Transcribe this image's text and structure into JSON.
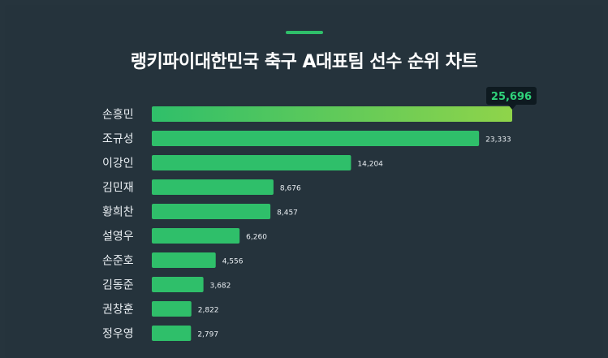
{
  "title": "랭키파이대한민국 축구 A대표팀 선수 순위 차트",
  "colors": {
    "background": "#25333c",
    "bar": "#2fbf6a",
    "bar_gradient_end": "#8fd44a",
    "accent": "#2fbf6a",
    "tooltip_bg": "#0e1a20",
    "tooltip_text": "#2fd27a"
  },
  "chart_data": {
    "type": "bar",
    "orientation": "horizontal",
    "title": "랭키파이대한민국 축구 A대표팀 선수 순위 차트",
    "categories": [
      "손흥민",
      "조규성",
      "이강인",
      "김민재",
      "황희찬",
      "설영우",
      "손준호",
      "김동준",
      "권창훈",
      "정우영"
    ],
    "values": [
      25696,
      23333,
      14204,
      8676,
      8457,
      6260,
      4556,
      3682,
      2822,
      2797
    ],
    "value_labels": [
      "25,696",
      "23,333",
      "14,204",
      "8,676",
      "8,457",
      "6,260",
      "4,556",
      "3,682",
      "2,822",
      "2,797"
    ],
    "highlight_index": 0,
    "grid": false,
    "xlim": [
      0,
      25696
    ]
  }
}
